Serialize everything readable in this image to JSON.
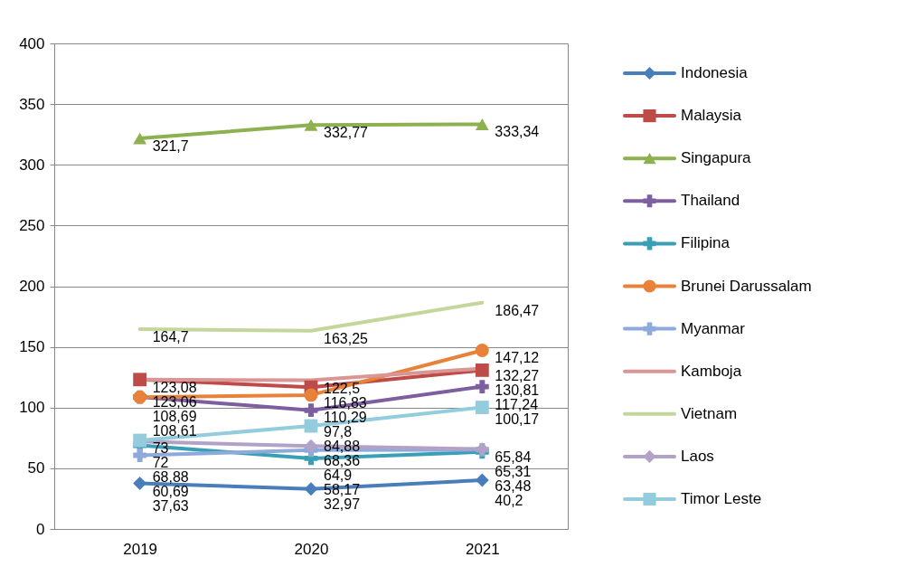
{
  "chart_data": {
    "type": "line",
    "categories": [
      "2019",
      "2020",
      "2021"
    ],
    "ylim": [
      0,
      400
    ],
    "yticks": [
      0,
      50,
      100,
      150,
      200,
      250,
      300,
      350,
      400
    ],
    "grid": "y",
    "legend": "right",
    "series": [
      {
        "name": "Indonesia",
        "color": "#4a7ebb",
        "marker": "diamond",
        "values": [
          37.63,
          32.97,
          40.2
        ],
        "value_labels": [
          "37,63",
          "32,97",
          "40,2"
        ]
      },
      {
        "name": "Malaysia",
        "color": "#be4b48",
        "marker": "square",
        "values": [
          123.08,
          116.83,
          130.81
        ],
        "value_labels": [
          "123,08",
          "116,83",
          "130,81"
        ]
      },
      {
        "name": "Singapura",
        "color": "#8db050",
        "marker": "triangle",
        "values": [
          321.7,
          332.77,
          333.34
        ],
        "value_labels": [
          "321,7",
          "332,77",
          "333,34"
        ]
      },
      {
        "name": "Thailand",
        "color": "#7d5fa0",
        "marker": "cross",
        "values": [
          108.69,
          97.8,
          117.24
        ],
        "value_labels": [
          "108,69",
          "97,8",
          "117,24"
        ]
      },
      {
        "name": "Filipina",
        "color": "#3a9fb5",
        "marker": "cross",
        "values": [
          68.88,
          58.17,
          63.48
        ],
        "value_labels": [
          "68,88",
          "58,17",
          "63,48"
        ]
      },
      {
        "name": "Brunei Darussalam",
        "color": "#e8823a",
        "marker": "circle",
        "values": [
          108.61,
          110.29,
          147.12
        ],
        "value_labels": [
          "108,61",
          "110,29",
          "147,12"
        ]
      },
      {
        "name": "Myanmar",
        "color": "#8eaadb",
        "marker": "cross",
        "values": [
          60.69,
          64.9,
          65.31
        ],
        "value_labels": [
          "60,69",
          "64,9",
          "65,31"
        ]
      },
      {
        "name": "Kamboja",
        "color": "#d99694",
        "marker": "none",
        "values": [
          123.06,
          122.5,
          132.27
        ],
        "value_labels": [
          "123,06",
          "122,5",
          "132,27"
        ]
      },
      {
        "name": "Vietnam",
        "color": "#c3d69b",
        "marker": "none",
        "values": [
          164.7,
          163.25,
          186.47
        ],
        "value_labels": [
          "164,7",
          "163,25",
          "186,47"
        ]
      },
      {
        "name": "Laos",
        "color": "#b3a2c7",
        "marker": "diamond",
        "values": [
          72.0,
          68.36,
          65.84
        ],
        "value_labels": [
          "72",
          "68,36",
          "65,84"
        ]
      },
      {
        "name": "Timor Leste",
        "color": "#93cddd",
        "marker": "square",
        "values": [
          73.0,
          84.88,
          100.17
        ],
        "value_labels": [
          "73",
          "84,88",
          "100,17"
        ]
      }
    ]
  }
}
